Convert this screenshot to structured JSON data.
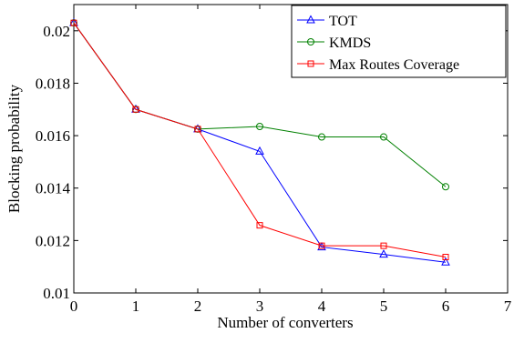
{
  "chart_data": {
    "type": "line",
    "title": "",
    "xlabel": "Number of converters",
    "ylabel": "Blocking probability",
    "xlim": [
      0,
      7
    ],
    "ylim": [
      0.01,
      0.021
    ],
    "xticks": [
      0,
      1,
      2,
      3,
      4,
      5,
      6,
      7
    ],
    "xtick_labels": [
      "0",
      "1",
      "2",
      "3",
      "4",
      "5",
      "6",
      "7"
    ],
    "yticks": [
      0.01,
      0.012,
      0.014,
      0.016,
      0.018,
      0.02
    ],
    "ytick_labels": [
      "0.01",
      "0.012",
      "0.014",
      "0.016",
      "0.018",
      "0.02"
    ],
    "grid": false,
    "legend_position": "top-right",
    "x": [
      0,
      1,
      2,
      3,
      4,
      5,
      6
    ],
    "series": [
      {
        "name": "TOT",
        "color": "#0000ff",
        "marker": "triangle",
        "values": [
          0.0203,
          0.017,
          0.01625,
          0.0154,
          0.01175,
          0.01147,
          0.01117
        ]
      },
      {
        "name": "KMDS",
        "color": "#008000",
        "marker": "circle",
        "values": [
          0.0203,
          0.017,
          0.01625,
          0.01635,
          0.01595,
          0.01595,
          0.01405
        ]
      },
      {
        "name": "Max Routes Coverage",
        "color": "#ff0000",
        "marker": "square",
        "values": [
          0.0203,
          0.017,
          0.01625,
          0.01258,
          0.0118,
          0.0118,
          0.01137
        ]
      }
    ]
  }
}
